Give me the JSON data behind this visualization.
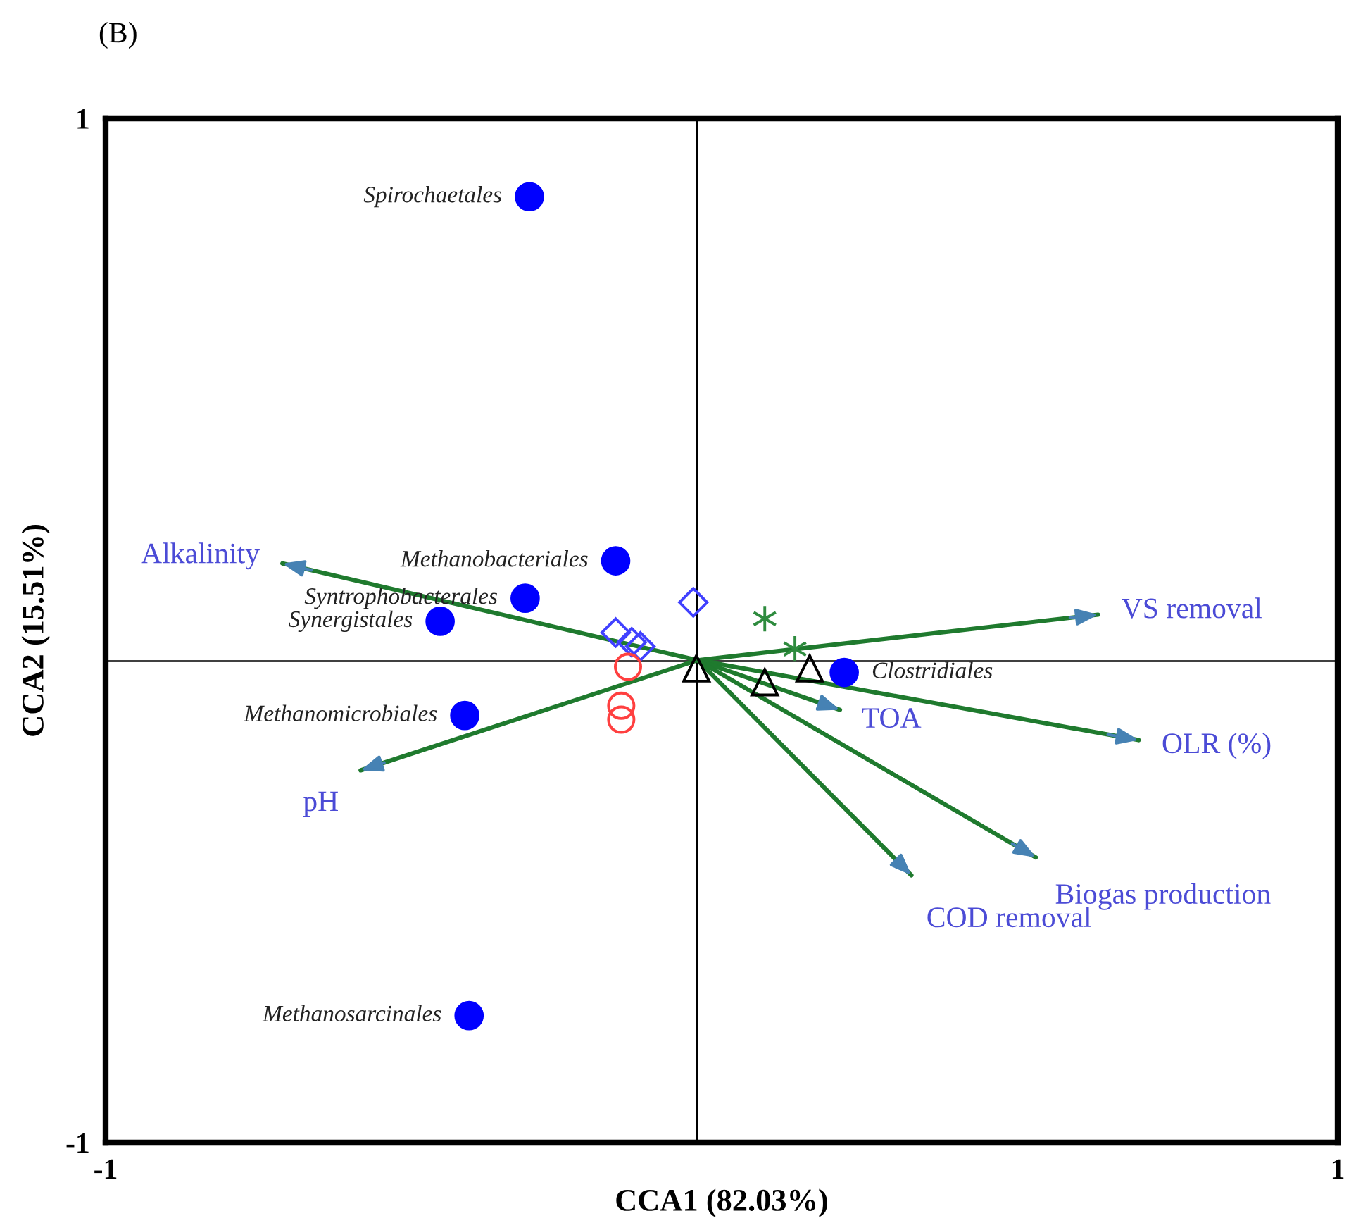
{
  "chart_data": {
    "type": "scatter",
    "xlabel": "CCA1 (82.03%)",
    "ylabel": "CCA2 (15.51%)",
    "xlim": [
      -1,
      1
    ],
    "ylim": [
      -1,
      1
    ],
    "xticks": [
      -1,
      1
    ],
    "yticks": [
      -1,
      1
    ],
    "legend": false,
    "annotations": [
      "(B)",
      {
        "text": "Spirochaetales",
        "x": -0.312,
        "y": 0.847
      },
      {
        "text": "Methanobacteriales",
        "x": -0.172,
        "y": 0.136
      },
      {
        "text": "Syntrophobacterales",
        "x": -0.319,
        "y": 0.063
      },
      {
        "text": "Synergistales",
        "x": -0.457,
        "y": 0.018
      },
      {
        "text": "Methanomicrobiales",
        "x": -0.417,
        "y": -0.166
      },
      {
        "text": "Methanosarcinales",
        "x": -0.41,
        "y": -0.752
      },
      {
        "text": "Clostridiales",
        "x": 0.199,
        "y": -0.082
      }
    ],
    "ref_lines": [
      {
        "axis": "x",
        "value": -0.04,
        "color": "#000000"
      },
      {
        "axis": "y",
        "value": -0.06,
        "color": "#000000"
      }
    ],
    "series": [
      {
        "color": "#0000ff",
        "marker": "circle",
        "x": [
          -0.312,
          -0.172,
          -0.319,
          -0.457,
          -0.417,
          -0.41,
          0.199
        ],
        "values": [
          0.847,
          0.136,
          0.063,
          0.018,
          -0.166,
          -0.752,
          -0.082
        ]
      },
      {
        "color": "#4040ff",
        "marker": "diamond",
        "x": [
          -0.046,
          -0.172,
          -0.146,
          -0.132
        ],
        "values": [
          0.055,
          -0.004,
          -0.023,
          -0.031
        ]
      },
      {
        "color": "#ff4040",
        "marker": "circle",
        "x": [
          -0.152,
          -0.163,
          -0.163
        ],
        "values": [
          -0.071,
          -0.147,
          -0.174
        ]
      },
      {
        "color": "#2e8b3e",
        "marker": "cross",
        "x": [
          0.07,
          0.119
        ],
        "values": [
          0.023,
          -0.036
        ]
      },
      {
        "color": "#000000",
        "marker": "triangle",
        "x": [
          -0.041,
          0.07,
          0.143
        ],
        "values": [
          -0.074,
          -0.101,
          -0.074
        ]
      },
      {
        "type": "line",
        "name": "Alkalinity",
        "color": "#1f7a2e",
        "x": [
          -0.039,
          -0.713
        ],
        "values": [
          -0.058,
          0.131
        ]
      },
      {
        "type": "line",
        "name": "VS removal",
        "color": "#1f7a2e",
        "x": [
          -0.039,
          0.611
        ],
        "values": [
          -0.058,
          0.031
        ]
      },
      {
        "type": "line",
        "name": "OLR (%)",
        "color": "#1f7a2e",
        "x": [
          -0.039,
          0.677
        ],
        "values": [
          -0.058,
          -0.214
        ]
      },
      {
        "type": "line",
        "name": "TOA",
        "color": "#1f7a2e",
        "x": [
          -0.039,
          0.192
        ],
        "values": [
          -0.058,
          -0.155
        ]
      },
      {
        "type": "line",
        "name": "Biogas production",
        "color": "#1f7a2e",
        "x": [
          -0.039,
          0.51
        ],
        "values": [
          -0.058,
          -0.443
        ]
      },
      {
        "type": "line",
        "name": "COD removal",
        "color": "#1f7a2e",
        "x": [
          -0.039,
          0.308
        ],
        "values": [
          -0.058,
          -0.478
        ]
      },
      {
        "type": "line",
        "name": "pH",
        "color": "#1f7a2e",
        "x": [
          -0.039,
          -0.586
        ],
        "values": [
          -0.058,
          -0.273
        ]
      }
    ]
  }
}
